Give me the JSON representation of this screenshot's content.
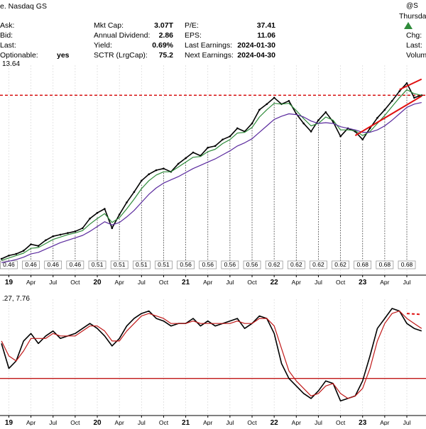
{
  "header": {
    "exchange": "e. Nasdaq GS",
    "brand": "@S",
    "day": "Thursday",
    "colA": [
      {
        "label": "Ask:",
        "value": ""
      },
      {
        "label": "Bid:",
        "value": ""
      },
      {
        "label": "Last:",
        "value": ""
      },
      {
        "label": "Optionable:",
        "value": "yes"
      }
    ],
    "colB": [
      {
        "label": "Mkt Cap:",
        "value": "3.07T"
      },
      {
        "label": "Annual Dividend:",
        "value": "2.86"
      },
      {
        "label": "Yield:",
        "value": "0.69%"
      },
      {
        "label": "SCTR (LrgCap):",
        "value": "75.2"
      }
    ],
    "colC": [
      {
        "label": "P/E:",
        "value": "37.41"
      },
      {
        "label": "EPS:",
        "value": "11.06"
      },
      {
        "label": "Last Earnings:",
        "value": "2024-01-30"
      },
      {
        "label": "Next Earnings:",
        "value": "2024-04-30"
      }
    ],
    "colD": [
      "Chg:",
      "Last:",
      "Volum"
    ],
    "up_color": "#2e8b3a"
  },
  "chart_data": [
    {
      "type": "line",
      "panel": "price",
      "label": "13.64",
      "x": [
        "2018-12",
        "2019-01",
        "2019-02",
        "2019-03",
        "2019-04",
        "2019-05",
        "2019-06",
        "2019-07",
        "2019-08",
        "2019-09",
        "2019-10",
        "2019-11",
        "2019-12",
        "2020-01",
        "2020-02",
        "2020-03",
        "2020-04",
        "2020-05",
        "2020-06",
        "2020-07",
        "2020-08",
        "2020-09",
        "2020-10",
        "2020-11",
        "2020-12",
        "2021-01",
        "2021-02",
        "2021-03",
        "2021-04",
        "2021-05",
        "2021-06",
        "2021-07",
        "2021-08",
        "2021-09",
        "2021-10",
        "2021-11",
        "2021-12",
        "2022-01",
        "2022-02",
        "2022-03",
        "2022-04",
        "2022-05",
        "2022-06",
        "2022-07",
        "2022-08",
        "2022-09",
        "2022-10",
        "2022-11",
        "2022-12",
        "2023-01",
        "2023-02",
        "2023-03",
        "2023-04",
        "2023-05",
        "2023-06",
        "2023-07",
        "2023-08",
        "2023-09"
      ],
      "series": [
        {
          "values": [
            100,
            104,
            106,
            110,
            118,
            116,
            123,
            128,
            130,
            132,
            134,
            138,
            150,
            157,
            162,
            138,
            155,
            170,
            183,
            197,
            205,
            210,
            212,
            208,
            218,
            225,
            232,
            228,
            238,
            240,
            248,
            252,
            262,
            258,
            268,
            285,
            292,
            300,
            292,
            296,
            280,
            268,
            258,
            272,
            282,
            270,
            252,
            262,
            258,
            248,
            262,
            275,
            285,
            296,
            308,
            318,
            300,
            303
          ],
          "color": "#000000"
        },
        {
          "values": [
            98,
            101,
            104,
            107,
            113,
            114,
            119,
            124,
            127,
            130,
            132,
            135,
            143,
            150,
            156,
            145,
            151,
            162,
            174,
            187,
            197,
            204,
            208,
            208,
            214,
            220,
            226,
            227,
            233,
            236,
            243,
            248,
            256,
            257,
            263,
            276,
            285,
            293,
            292,
            293,
            284,
            274,
            265,
            268,
            276,
            272,
            260,
            260,
            259,
            253,
            258,
            268,
            278,
            289,
            300,
            310,
            305,
            303
          ],
          "color": "#2e8b3a"
        },
        {
          "values": [
            95,
            97,
            99,
            102,
            106,
            108,
            112,
            116,
            120,
            123,
            126,
            129,
            134,
            140,
            146,
            142,
            145,
            152,
            160,
            170,
            180,
            188,
            194,
            198,
            202,
            207,
            212,
            216,
            220,
            224,
            229,
            234,
            240,
            244,
            249,
            257,
            265,
            273,
            277,
            280,
            279,
            276,
            271,
            268,
            269,
            268,
            264,
            262,
            260,
            257,
            257,
            260,
            265,
            272,
            280,
            288,
            292,
            294
          ],
          "color": "#5a2a9e"
        }
      ],
      "ylim": [
        85,
        335
      ],
      "levels": [
        {
          "name": "resistance",
          "value": 303,
          "color": "#d40000",
          "style": "dashed"
        }
      ],
      "trendlines": [
        {
          "from": [
            "2022-12",
            253
          ],
          "to": [
            "2023-09",
            302
          ],
          "color": "#e01010"
        },
        {
          "from": [
            "2023-06",
            310
          ],
          "to": [
            "2023-09",
            323
          ],
          "color": "#e01010"
        }
      ],
      "dividends": [
        {
          "x": "2019-01",
          "label": "0.46"
        },
        {
          "x": "2019-04",
          "label": "0.46"
        },
        {
          "x": "2019-07",
          "label": "0.46"
        },
        {
          "x": "2019-10",
          "label": "0.46"
        },
        {
          "x": "2020-01",
          "label": "0.51"
        },
        {
          "x": "2020-04",
          "label": "0.51"
        },
        {
          "x": "2020-07",
          "label": "0.51"
        },
        {
          "x": "2020-10",
          "label": "0.51"
        },
        {
          "x": "2021-01",
          "label": "0.56"
        },
        {
          "x": "2021-04",
          "label": "0.56"
        },
        {
          "x": "2021-07",
          "label": "0.56"
        },
        {
          "x": "2021-10",
          "label": "0.56"
        },
        {
          "x": "2022-01",
          "label": "0.62"
        },
        {
          "x": "2022-04",
          "label": "0.62"
        },
        {
          "x": "2022-07",
          "label": "0.62"
        },
        {
          "x": "2022-10",
          "label": "0.62"
        },
        {
          "x": "2023-01",
          "label": "0.68"
        },
        {
          "x": "2023-04",
          "label": "0.68"
        },
        {
          "x": "2023-07",
          "label": "0.68"
        }
      ],
      "xticks": [
        {
          "x": "2019-01",
          "label": "19",
          "bold": true
        },
        {
          "x": "2019-04",
          "label": "Apr"
        },
        {
          "x": "2019-07",
          "label": "Jul"
        },
        {
          "x": "2019-10",
          "label": "Oct"
        },
        {
          "x": "2020-01",
          "label": "20",
          "bold": true
        },
        {
          "x": "2020-04",
          "label": "Apr"
        },
        {
          "x": "2020-07",
          "label": "Jul"
        },
        {
          "x": "2020-10",
          "label": "Oct"
        },
        {
          "x": "2021-01",
          "label": "21",
          "bold": true
        },
        {
          "x": "2021-04",
          "label": "Apr"
        },
        {
          "x": "2021-07",
          "label": "Jul"
        },
        {
          "x": "2021-10",
          "label": "Oct"
        },
        {
          "x": "2022-01",
          "label": "22",
          "bold": true
        },
        {
          "x": "2022-04",
          "label": "Apr"
        },
        {
          "x": "2022-07",
          "label": "Jul"
        },
        {
          "x": "2022-10",
          "label": "Oct"
        },
        {
          "x": "2023-01",
          "label": "23",
          "bold": true
        },
        {
          "x": "2023-04",
          "label": "Apr"
        },
        {
          "x": "2023-07",
          "label": "Jul"
        }
      ],
      "grid": true
    },
    {
      "type": "line",
      "panel": "macd",
      "label": ".27, 7.76",
      "x": [
        "2018-12",
        "2019-01",
        "2019-02",
        "2019-03",
        "2019-04",
        "2019-05",
        "2019-06",
        "2019-07",
        "2019-08",
        "2019-09",
        "2019-10",
        "2019-11",
        "2019-12",
        "2020-01",
        "2020-02",
        "2020-03",
        "2020-04",
        "2020-05",
        "2020-06",
        "2020-07",
        "2020-08",
        "2020-09",
        "2020-10",
        "2020-11",
        "2020-12",
        "2021-01",
        "2021-02",
        "2021-03",
        "2021-04",
        "2021-05",
        "2021-06",
        "2021-07",
        "2021-08",
        "2021-09",
        "2021-10",
        "2021-11",
        "2021-12",
        "2022-01",
        "2022-02",
        "2022-03",
        "2022-04",
        "2022-05",
        "2022-06",
        "2022-07",
        "2022-08",
        "2022-09",
        "2022-10",
        "2022-11",
        "2022-12",
        "2023-01",
        "2023-02",
        "2023-03",
        "2023-04",
        "2023-05",
        "2023-06",
        "2023-07",
        "2023-08",
        "2023-09"
      ],
      "series": [
        {
          "values": [
            2,
            -8,
            -5,
            3,
            6,
            2,
            5,
            7,
            4,
            5,
            6,
            8,
            10,
            8,
            5,
            1,
            4,
            9,
            12,
            14,
            15,
            12,
            11,
            9,
            10,
            10,
            12,
            9,
            11,
            9,
            10,
            11,
            12,
            8,
            10,
            13,
            12,
            6,
            -6,
            -12,
            -15,
            -18,
            -20,
            -17,
            -13,
            -14,
            -21,
            -20,
            -19,
            -13,
            -3,
            8,
            12,
            16,
            15,
            10,
            8,
            7
          ],
          "color": "#000000"
        },
        {
          "values": [
            3,
            -3,
            -5,
            -1,
            4,
            4,
            4,
            6,
            5,
            5,
            5,
            7,
            9,
            9,
            7,
            3,
            3,
            7,
            10,
            13,
            14,
            13,
            12,
            10,
            10,
            10,
            11,
            10,
            10,
            10,
            10,
            10,
            11,
            10,
            10,
            12,
            12,
            9,
            0,
            -9,
            -13,
            -16,
            -19,
            -18,
            -15,
            -14,
            -18,
            -20,
            -19,
            -16,
            -8,
            3,
            10,
            14,
            15,
            12,
            10,
            8
          ],
          "color": "#c01818"
        }
      ],
      "ylim": [
        -24,
        18
      ],
      "levels": [
        {
          "name": "macd-reference",
          "value": -12,
          "color": "#c01818",
          "style": "solid"
        }
      ],
      "trendlines": [
        {
          "from": [
            "2023-07",
            14
          ],
          "to": [
            "2023-09",
            13.6
          ],
          "color": "#e01010",
          "style": "dashed"
        }
      ],
      "xticks": [
        {
          "x": "2019-01",
          "label": "19",
          "bold": true
        },
        {
          "x": "2019-04",
          "label": "Apr"
        },
        {
          "x": "2019-07",
          "label": "Jul"
        },
        {
          "x": "2019-10",
          "label": "Oct"
        },
        {
          "x": "2020-01",
          "label": "20",
          "bold": true
        },
        {
          "x": "2020-04",
          "label": "Apr"
        },
        {
          "x": "2020-07",
          "label": "Jul"
        },
        {
          "x": "2020-10",
          "label": "Oct"
        },
        {
          "x": "2021-01",
          "label": "21",
          "bold": true
        },
        {
          "x": "2021-04",
          "label": "Apr"
        },
        {
          "x": "2021-07",
          "label": "Jul"
        },
        {
          "x": "2021-10",
          "label": "Oct"
        },
        {
          "x": "2022-01",
          "label": "22",
          "bold": true
        },
        {
          "x": "2022-04",
          "label": "Apr"
        },
        {
          "x": "2022-07",
          "label": "Jul"
        },
        {
          "x": "2022-10",
          "label": "Oct"
        },
        {
          "x": "2023-01",
          "label": "23",
          "bold": true
        },
        {
          "x": "2023-04",
          "label": "Apr"
        },
        {
          "x": "2023-07",
          "label": "Jul"
        }
      ],
      "grid": true
    }
  ]
}
